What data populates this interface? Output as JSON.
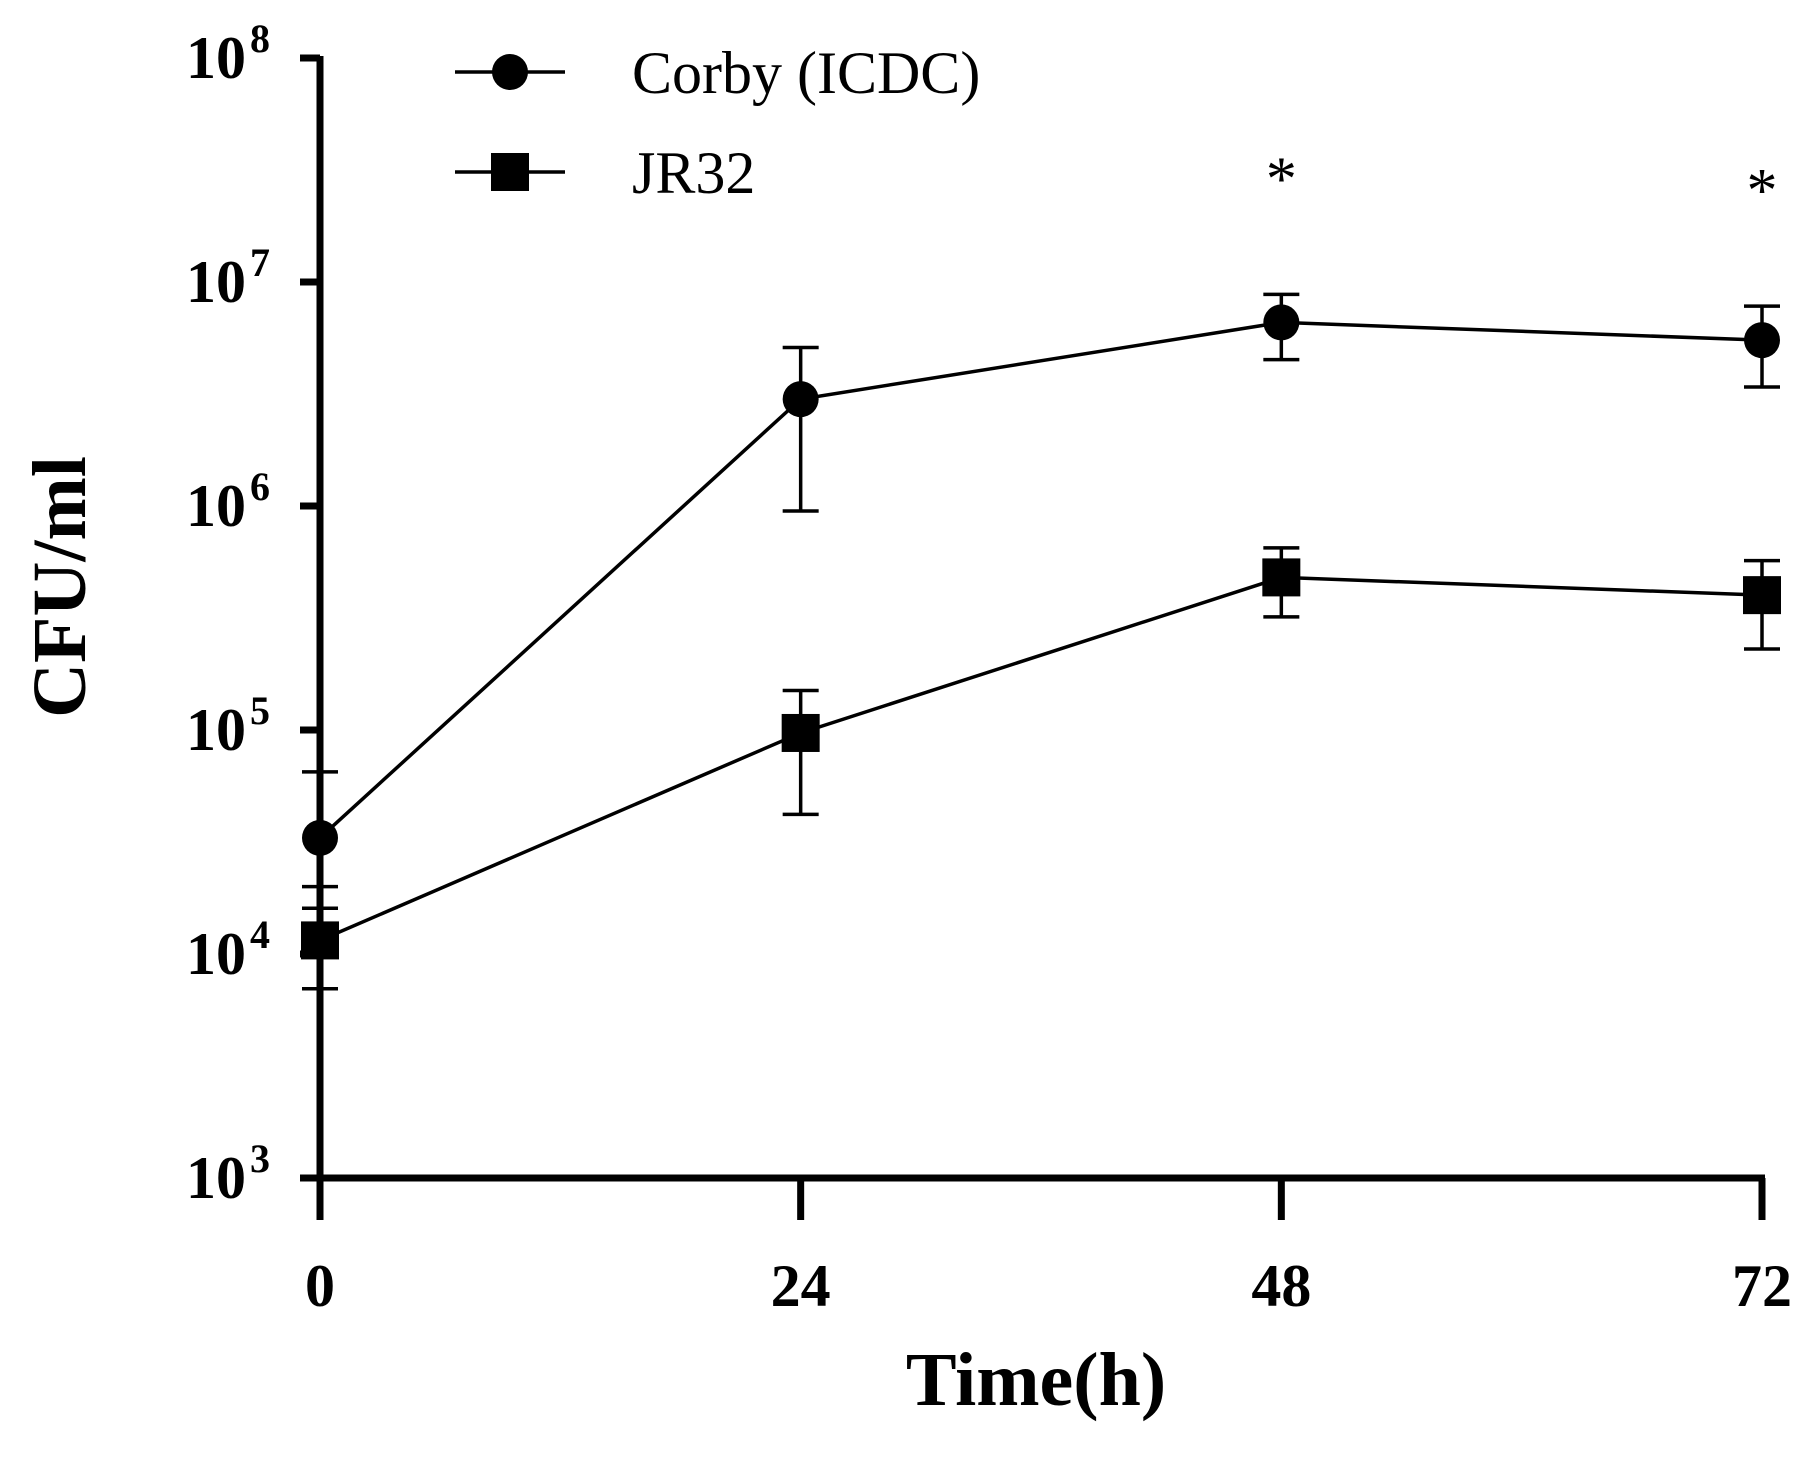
{
  "chart_data": {
    "type": "line",
    "title": "",
    "xlabel": "Time(h)",
    "ylabel": "CFU/ml",
    "yscale": "log",
    "ylim": [
      1000,
      100000000
    ],
    "xlim": [
      0,
      72
    ],
    "x": [
      0,
      24,
      48,
      72
    ],
    "x_tick_labels": [
      "0",
      "24",
      "48",
      "72"
    ],
    "y_ticks": [
      {
        "value": 1000,
        "base": "10",
        "exp": "3"
      },
      {
        "value": 10000,
        "base": "10",
        "exp": "4"
      },
      {
        "value": 100000,
        "base": "10",
        "exp": "5"
      },
      {
        "value": 1000000,
        "base": "10",
        "exp": "6"
      },
      {
        "value": 10000000,
        "base": "10",
        "exp": "7"
      },
      {
        "value": 100000000,
        "base": "10",
        "exp": "8"
      }
    ],
    "series": [
      {
        "name": "Corby (ICDC)",
        "marker": "circle",
        "values": [
          33000,
          3000000,
          6600000,
          5500000
        ],
        "err_low": [
          20000,
          950000,
          4500000,
          3400000
        ],
        "err_high": [
          65000,
          5100000,
          8800000,
          7800000
        ]
      },
      {
        "name": "JR32",
        "marker": "square",
        "values": [
          11500,
          97000,
          480000,
          400000
        ],
        "err_low": [
          7000,
          42000,
          320000,
          230000
        ],
        "err_high": [
          16000,
          150000,
          650000,
          570000
        ]
      }
    ],
    "annotations": [
      {
        "x": 48,
        "text": "*"
      },
      {
        "x": 72,
        "text": "*"
      }
    ],
    "legend": {
      "position": "top-left"
    },
    "grid": false
  }
}
